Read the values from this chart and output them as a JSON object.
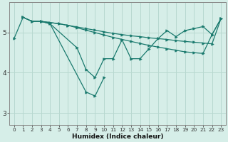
{
  "xlabel": "Humidex (Indice chaleur)",
  "bg_color": "#d6eee8",
  "line_color": "#1a7a6e",
  "grid_color": "#b8d8d0",
  "yticks": [
    3,
    4,
    5
  ],
  "ylim": [
    2.7,
    5.75
  ],
  "xlim": [
    -0.5,
    23.5
  ],
  "line1_x": [
    0,
    1,
    2,
    3,
    4,
    5,
    6,
    7,
    8,
    9,
    10,
    11,
    12,
    13,
    14,
    15,
    16,
    17,
    18,
    19,
    20,
    21,
    22,
    23
  ],
  "line1_y": [
    4.85,
    5.38,
    5.28,
    5.28,
    5.25,
    5.22,
    5.18,
    5.14,
    5.1,
    5.06,
    5.02,
    4.98,
    4.95,
    4.92,
    4.9,
    4.87,
    4.85,
    4.83,
    4.8,
    4.78,
    4.76,
    4.74,
    4.72,
    5.35
  ],
  "line2_x": [
    1,
    2,
    3,
    4,
    5,
    6,
    7,
    8,
    9,
    10,
    11,
    12,
    13,
    14,
    15,
    16,
    17,
    18,
    19,
    20,
    21,
    22,
    23
  ],
  "line2_y": [
    5.38,
    5.28,
    5.28,
    5.25,
    5.22,
    5.18,
    5.12,
    5.06,
    5.0,
    4.94,
    4.88,
    4.83,
    4.78,
    4.73,
    4.68,
    4.64,
    4.6,
    4.56,
    4.52,
    4.5,
    4.48,
    4.95,
    5.35
  ],
  "line3_x": [
    1,
    2,
    3,
    4,
    7,
    8,
    9,
    10,
    11,
    12,
    13,
    14,
    15,
    16,
    17,
    18,
    19,
    20,
    21,
    22,
    23
  ],
  "line3_y": [
    5.38,
    5.28,
    5.28,
    5.22,
    4.62,
    4.08,
    3.88,
    4.35,
    4.35,
    4.82,
    4.35,
    4.35,
    4.6,
    4.85,
    5.05,
    4.9,
    5.05,
    5.1,
    5.15,
    4.95,
    5.35
  ],
  "line4_x": [
    3,
    4,
    8,
    9,
    10
  ],
  "line4_y": [
    5.28,
    5.22,
    3.52,
    3.42,
    3.88
  ]
}
